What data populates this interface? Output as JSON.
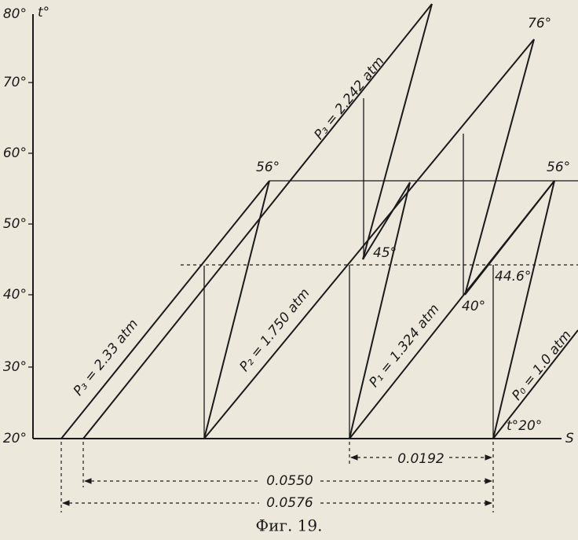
{
  "axes": {
    "y_label": "t°",
    "x_label": "S",
    "y_ticks": [
      "80°",
      "70°",
      "60°",
      "50°",
      "40°",
      "30°",
      "20°"
    ]
  },
  "point_labels": [
    "56°",
    "76°",
    "56°",
    "45°",
    "40°",
    "44.6°",
    "t°20°"
  ],
  "line_labels": [
    "P₃ = 2.33 atm",
    "P₃ = 2.242 atm",
    "P₂ = 1.750 atm",
    "P₁ = 1.324 atm",
    "P₀ = 1.0 atm"
  ],
  "dimensions": [
    "0.0192",
    "0.0550",
    "0.0576"
  ],
  "caption": "Фиг. 19."
}
